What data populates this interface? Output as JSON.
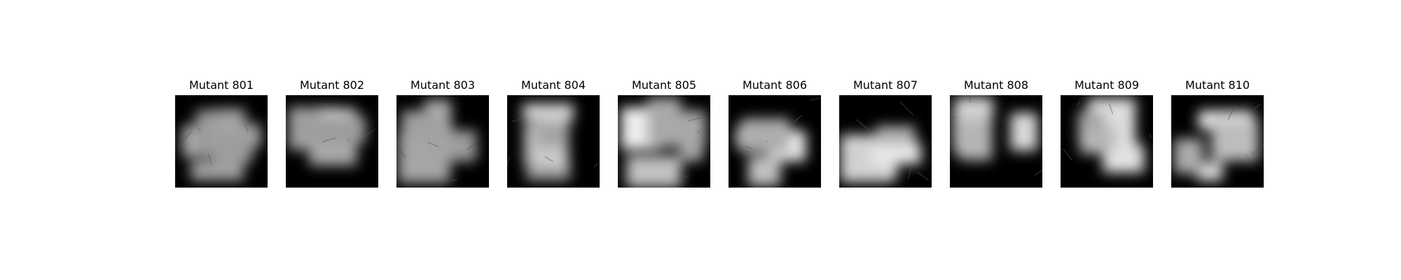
{
  "panels": [
    {
      "title": "Mutant 801"
    },
    {
      "title": "Mutant 802"
    },
    {
      "title": "Mutant 803"
    },
    {
      "title": "Mutant 804"
    },
    {
      "title": "Mutant 805"
    },
    {
      "title": "Mutant 806"
    },
    {
      "title": "Mutant 807"
    },
    {
      "title": "Mutant 808"
    },
    {
      "title": "Mutant 809"
    },
    {
      "title": "Mutant 810"
    }
  ],
  "colors": {
    "background": "#ffffff",
    "title_text": "#000000",
    "image_dark": "#000000",
    "image_light": "#d8d8d8"
  }
}
